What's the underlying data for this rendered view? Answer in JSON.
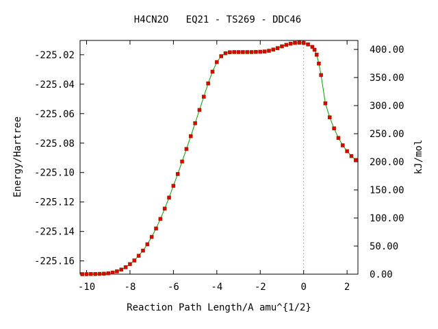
{
  "chart_data": {
    "type": "line",
    "title": "H4CN2O   EQ21 - TS269 - DDC46",
    "xlabel": "Reaction Path Length/A amu^{1/2}",
    "ylabel": "Energy/Hartree",
    "y2label": "kJ/mol",
    "xlim": [
      -10.3,
      2.5
    ],
    "ylim": [
      -225.169,
      -225.0103
    ],
    "y2lim": [
      0.0,
      416.0
    ],
    "x_ticks": [
      -10,
      -8,
      -6,
      -4,
      -2,
      0,
      2
    ],
    "x_tick_labels": [
      "-10",
      "-8",
      "-6",
      "-4",
      "-2",
      "0",
      "2"
    ],
    "y_ticks": [
      -225.02,
      -225.04,
      -225.06,
      -225.08,
      -225.1,
      -225.12,
      -225.14,
      -225.16
    ],
    "y_tick_labels": [
      "-225.02",
      "-225.04",
      "-225.06",
      "-225.08",
      "-225.10",
      "-225.12",
      "-225.14",
      "-225.16"
    ],
    "y2_ticks": [
      400,
      350,
      300,
      250,
      200,
      150,
      100,
      50,
      0
    ],
    "y2_tick_labels": [
      "400.00",
      "350.00",
      "300.00",
      "250.00",
      "200.00",
      "150.00",
      "100.00",
      "50.00",
      "0.00"
    ],
    "reference_line_x": 0,
    "series": [
      {
        "color": "#00a000",
        "marker_color": "#e00000",
        "x": [
          -10.2,
          -10.0,
          -9.8,
          -9.6,
          -9.4,
          -9.2,
          -9.0,
          -8.8,
          -8.6,
          -8.4,
          -8.2,
          -8.0,
          -7.8,
          -7.6,
          -7.4,
          -7.2,
          -7.0,
          -6.8,
          -6.6,
          -6.4,
          -6.2,
          -6.0,
          -5.8,
          -5.6,
          -5.4,
          -5.2,
          -5.0,
          -4.8,
          -4.6,
          -4.4,
          -4.2,
          -4.0,
          -3.8,
          -3.6,
          -3.4,
          -3.2,
          -3.0,
          -2.8,
          -2.6,
          -2.4,
          -2.2,
          -2.0,
          -1.8,
          -1.6,
          -1.4,
          -1.2,
          -1.0,
          -0.8,
          -0.6,
          -0.4,
          -0.2,
          0.0,
          0.2,
          0.4,
          0.5,
          0.6,
          0.7,
          0.8,
          1.0,
          1.2,
          1.4,
          1.6,
          1.8,
          2.0,
          2.2,
          2.4
        ],
        "y": [
          -225.169,
          -225.169,
          -225.1689,
          -225.1689,
          -225.1688,
          -225.1687,
          -225.1684,
          -225.1679,
          -225.1671,
          -225.1659,
          -225.1643,
          -225.1622,
          -225.1597,
          -225.1565,
          -225.153,
          -225.1487,
          -225.1437,
          -225.138,
          -225.1315,
          -225.1245,
          -225.117,
          -225.109,
          -225.101,
          -225.0925,
          -225.084,
          -225.0753,
          -225.0665,
          -225.0575,
          -225.0485,
          -225.0395,
          -225.0315,
          -225.025,
          -225.021,
          -225.019,
          -225.0183,
          -225.0182,
          -225.0182,
          -225.0182,
          -225.0182,
          -225.0182,
          -225.0181,
          -225.018,
          -225.0178,
          -225.0173,
          -225.0165,
          -225.0155,
          -225.0143,
          -225.0133,
          -225.0125,
          -225.012,
          -225.0118,
          -225.012,
          -225.013,
          -225.0147,
          -225.0166,
          -225.02,
          -225.026,
          -225.0338,
          -225.053,
          -225.0625,
          -225.07,
          -225.0765,
          -225.0815,
          -225.0855,
          -225.0888,
          -225.0915
        ]
      }
    ]
  }
}
